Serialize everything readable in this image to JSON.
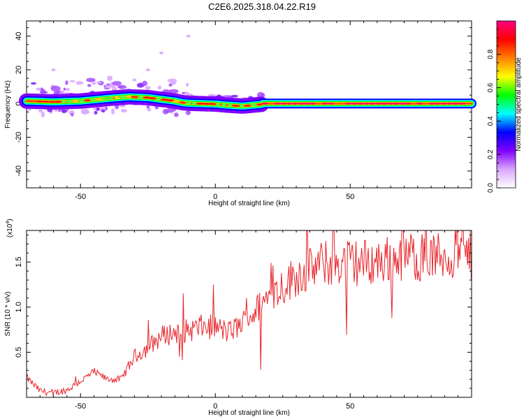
{
  "title": "C2E6.2025.318.04.22.R19",
  "chart_data": [
    {
      "type": "heatmap",
      "xlabel": "Height of straight line (km)",
      "ylabel": "Frequency (Hz)",
      "xlim": [
        -70,
        95
      ],
      "ylim": [
        -50,
        49
      ],
      "xticks": [
        -50,
        0,
        50
      ],
      "yticks": [
        -40,
        -20,
        0,
        20,
        40
      ],
      "ridge": {
        "x": [
          -70,
          -60,
          -50,
          -40,
          -32,
          -25,
          -20,
          -15,
          -12,
          -10,
          0,
          5,
          10,
          17,
          17.1,
          95
        ],
        "y": [
          1.5,
          1.0,
          1.5,
          3.0,
          4.0,
          3.5,
          2.5,
          1.5,
          0.5,
          0.2,
          -0.3,
          -1.0,
          -1.5,
          -0.5,
          0.0,
          0.0
        ]
      },
      "colorbar": {
        "label": "Normalized spectral amplitude",
        "range": [
          0,
          1
        ],
        "ticks": [
          "0.0",
          "0.2",
          "0.4",
          "0.6",
          "0.8"
        ],
        "colormap": [
          "#ffffff",
          "#d9a6ff",
          "#8000ff",
          "#0000ff",
          "#00ffff",
          "#00ff00",
          "#ffff00",
          "#ff8000",
          "#ff0000",
          "#ff0080"
        ]
      }
    },
    {
      "type": "line",
      "xlabel": "Height of straight line (km)",
      "ylabel": "SNR (10 * v/v)",
      "yscale_label": "(x10",
      "yscale_exp": "4",
      "xlim": [
        -70,
        95
      ],
      "ylim": [
        0,
        1.85
      ],
      "xticks": [
        -50,
        0,
        50
      ],
      "yticks": [
        "0.5",
        "1.0",
        "1.5"
      ],
      "series": [
        {
          "color": "#e8242a",
          "trend": {
            "x": [
              -70,
              -65,
              -60,
              -55,
              -50,
              -45,
              -40,
              -35,
              -30,
              -25,
              -20,
              -15,
              -10,
              -5,
              0,
              5,
              10,
              15,
              20,
              30,
              40,
              50,
              60,
              70,
              80,
              90,
              95
            ],
            "y": [
              0.22,
              0.07,
              0.05,
              0.08,
              0.18,
              0.28,
              0.2,
              0.2,
              0.45,
              0.55,
              0.68,
              0.72,
              0.74,
              0.78,
              0.78,
              0.72,
              0.82,
              0.96,
              1.12,
              1.35,
              1.48,
              1.5,
              1.5,
              1.58,
              1.55,
              1.58,
              1.58
            ]
          }
        }
      ]
    }
  ]
}
